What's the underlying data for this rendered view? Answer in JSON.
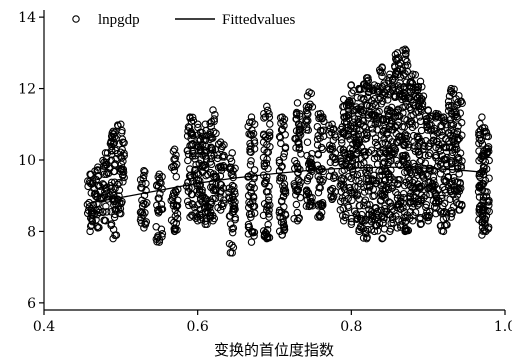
{
  "chart_data": {
    "type": "scatter",
    "xlabel": "变换的首位度指数",
    "ylabel": "",
    "xlim": [
      0.4,
      1.0
    ],
    "ylim": [
      5.8,
      14.2
    ],
    "x_ticks": [
      "0.4",
      "0.6",
      "0.8",
      "1.0"
    ],
    "y_ticks": [
      "6",
      "8",
      "10",
      "12",
      "14"
    ],
    "grid": false,
    "legend": {
      "placement": "top-left",
      "entries": [
        {
          "label": "lnpgdp",
          "marker": "hollow-circle"
        },
        {
          "label": "Fittedvalues",
          "marker": "line"
        }
      ]
    },
    "series": [
      {
        "name": "lnpgdp",
        "kind": "scatter",
        "clusters": [
          {
            "x": 0.46,
            "y_min": 8.0,
            "y_max": 9.6
          },
          {
            "x": 0.47,
            "y_min": 8.1,
            "y_max": 9.8
          },
          {
            "x": 0.48,
            "y_min": 8.3,
            "y_max": 10.2
          },
          {
            "x": 0.49,
            "y_min": 7.8,
            "y_max": 10.8
          },
          {
            "x": 0.5,
            "y_min": 8.5,
            "y_max": 11.0
          },
          {
            "x": 0.53,
            "y_min": 8.1,
            "y_max": 9.7
          },
          {
            "x": 0.55,
            "y_min": 7.7,
            "y_max": 9.6
          },
          {
            "x": 0.57,
            "y_min": 8.0,
            "y_max": 10.3
          },
          {
            "x": 0.59,
            "y_min": 8.4,
            "y_max": 11.2
          },
          {
            "x": 0.6,
            "y_min": 8.3,
            "y_max": 11.0
          },
          {
            "x": 0.61,
            "y_min": 8.2,
            "y_max": 11.0
          },
          {
            "x": 0.62,
            "y_min": 8.3,
            "y_max": 11.4
          },
          {
            "x": 0.63,
            "y_min": 8.6,
            "y_max": 10.5
          },
          {
            "x": 0.645,
            "y_min": 7.4,
            "y_max": 10.2
          },
          {
            "x": 0.67,
            "y_min": 7.7,
            "y_max": 11.2
          },
          {
            "x": 0.69,
            "y_min": 7.8,
            "y_max": 11.5
          },
          {
            "x": 0.71,
            "y_min": 7.9,
            "y_max": 11.2
          },
          {
            "x": 0.73,
            "y_min": 8.3,
            "y_max": 11.6
          },
          {
            "x": 0.745,
            "y_min": 8.7,
            "y_max": 11.9
          },
          {
            "x": 0.76,
            "y_min": 8.4,
            "y_max": 11.3
          },
          {
            "x": 0.775,
            "y_min": 8.9,
            "y_max": 11.0
          },
          {
            "x": 0.79,
            "y_min": 8.3,
            "y_max": 11.7
          },
          {
            "x": 0.8,
            "y_min": 8.2,
            "y_max": 12.1
          },
          {
            "x": 0.81,
            "y_min": 8.0,
            "y_max": 12.0
          },
          {
            "x": 0.82,
            "y_min": 7.8,
            "y_max": 12.3
          },
          {
            "x": 0.83,
            "y_min": 8.0,
            "y_max": 12.1
          },
          {
            "x": 0.84,
            "y_min": 7.8,
            "y_max": 12.6
          },
          {
            "x": 0.85,
            "y_min": 8.0,
            "y_max": 12.4
          },
          {
            "x": 0.86,
            "y_min": 8.1,
            "y_max": 13.0
          },
          {
            "x": 0.87,
            "y_min": 8.0,
            "y_max": 13.1
          },
          {
            "x": 0.88,
            "y_min": 8.3,
            "y_max": 12.4
          },
          {
            "x": 0.89,
            "y_min": 8.2,
            "y_max": 12.2
          },
          {
            "x": 0.9,
            "y_min": 8.3,
            "y_max": 11.4
          },
          {
            "x": 0.91,
            "y_min": 8.5,
            "y_max": 11.3
          },
          {
            "x": 0.92,
            "y_min": 8.0,
            "y_max": 11.2
          },
          {
            "x": 0.93,
            "y_min": 8.4,
            "y_max": 12.0
          },
          {
            "x": 0.94,
            "y_min": 8.6,
            "y_max": 11.8
          },
          {
            "x": 0.97,
            "y_min": 7.9,
            "y_max": 11.2
          },
          {
            "x": 0.975,
            "y_min": 8.0,
            "y_max": 10.8
          }
        ]
      },
      {
        "name": "Fittedvalues",
        "kind": "line",
        "x": [
          0.46,
          0.5,
          0.55,
          0.6,
          0.65,
          0.7,
          0.75,
          0.8,
          0.85,
          0.9,
          0.95,
          0.975
        ],
        "y": [
          8.8,
          8.95,
          9.15,
          9.35,
          9.5,
          9.62,
          9.72,
          9.78,
          9.8,
          9.77,
          9.7,
          9.65
        ]
      }
    ]
  }
}
